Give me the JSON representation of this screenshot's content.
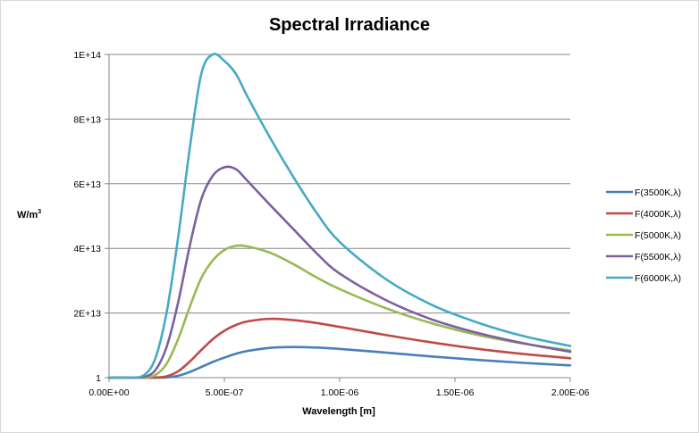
{
  "chart_data": {
    "type": "line",
    "title": "Spectral Irradiance",
    "xlabel": "Wavelength [m]",
    "ylabel": {
      "base": "W/m",
      "sup": "3"
    },
    "xlim": [
      0,
      2e-06
    ],
    "ylim": [
      1,
      100000000000000.0
    ],
    "x_ticks": [
      {
        "value": 0,
        "label": "0.00E+00"
      },
      {
        "value": 5e-07,
        "label": "5.00E-07"
      },
      {
        "value": 1e-06,
        "label": "1.00E-06"
      },
      {
        "value": 1.5e-06,
        "label": "1.50E-06"
      },
      {
        "value": 2e-06,
        "label": "2.00E-06"
      }
    ],
    "y_ticks": [
      {
        "value": 1,
        "label": "1"
      },
      {
        "value": 20000000000000.0,
        "label": "2E+13"
      },
      {
        "value": 40000000000000.0,
        "label": "4E+13"
      },
      {
        "value": 60000000000000.0,
        "label": "6E+13"
      },
      {
        "value": 80000000000000.0,
        "label": "8E+13"
      },
      {
        "value": 100000000000000.0,
        "label": "1E+14"
      }
    ],
    "grid": "horizontal",
    "legend_position": "right",
    "x": [
      0,
      1e-07,
      1.5e-07,
      2e-07,
      2.5e-07,
      3e-07,
      3.5e-07,
      4e-07,
      4.5e-07,
      5e-07,
      5.5e-07,
      6e-07,
      7e-07,
      8e-07,
      9e-07,
      1e-06,
      1.2e-06,
      1.4e-06,
      1.6e-06,
      1.8e-06,
      2e-06
    ],
    "series": [
      {
        "name": "F(3500K,λ)",
        "color": "#4a7ebb",
        "values": [
          0,
          0,
          0,
          2500000000.0,
          87000000000.0,
          585000000000.0,
          1740000000000.0,
          3290000000000.0,
          4870000000000.0,
          6200000000000.0,
          7380000000000.0,
          8250000000000.0,
          9230000000000.0,
          9490000000000.0,
          9300000000000.0,
          8880000000000.0,
          7750000000000.0,
          6550000000000.0,
          5470000000000.0,
          4560000000000.0,
          3800000000000.0
        ]
      },
      {
        "name": "F(4000K,λ)",
        "color": "#be4b48",
        "values": [
          0,
          0,
          1000000000.0,
          29000000000.0,
          421000000000.0,
          1980000000000.0,
          4970000000000.0,
          8550000000000.0,
          11900000000000.0,
          14500000000000.0,
          16300000000000.0,
          17400000000000.0,
          18200000000000.0,
          17800000000000.0,
          16900000000000.0,
          15700000000000.0,
          13200000000000.0,
          10900000000000.0,
          8900000000000.0,
          7300000000000.0,
          6000000000000.0
        ]
      },
      {
        "name": "F(5000K,λ)",
        "color": "#98b954",
        "values": [
          0,
          0,
          46000000000.0,
          770000000000.0,
          4330000000000.0,
          12000000000000.0,
          21900000000000.0,
          30800000000000.0,
          36300000000000.0,
          39500000000000.0,
          40800000000000.0,
          40600000000000.0,
          38600000000000.0,
          35100000000000.0,
          31000000000000.0,
          27400000000000.0,
          21500000000000.0,
          16800000000000.0,
          13200000000000.0,
          10500000000000.0,
          8400000000000.0
        ]
      },
      {
        "name": "F(5500K,λ)",
        "color": "#7d60a0",
        "values": [
          0,
          1500000000.0,
          205000000000.0,
          2240000000000.0,
          9600000000000.0,
          23400000000000.0,
          40800000000000.0,
          55200000000000.0,
          62500000000000.0,
          65100000000000.0,
          64500000000000.0,
          60900000000000.0,
          53300000000000.0,
          45900000000000.0,
          38500000000000.0,
          32200000000000.0,
          24000000000000.0,
          18000000000000.0,
          13800000000000.0,
          10600000000000.0,
          8000000000000.0
        ]
      },
      {
        "name": "F(6000K,λ)",
        "color": "#46aac5",
        "values": [
          0,
          6000000000.0,
          678000000000.0,
          5810000000000.0,
          20300000000000.0,
          43600000000000.0,
          71000000000000.0,
          94000000000000.0,
          100000000000000.0,
          98000000000000.0,
          94000000000000.0,
          87000000000000.0,
          74000000000000.0,
          62000000000000.0,
          51000000000000.0,
          42000000000000.0,
          30500000000000.0,
          22500000000000.0,
          17000000000000.0,
          12800000000000.0,
          9800000000000.0
        ]
      }
    ]
  }
}
